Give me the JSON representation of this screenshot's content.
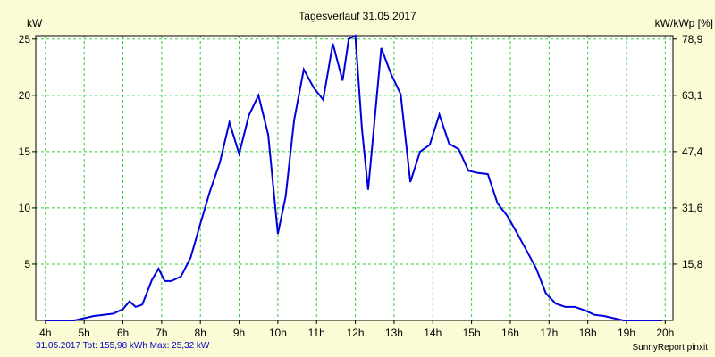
{
  "chart_data": {
    "type": "line",
    "title": "Tagesverlauf 31.05.2017",
    "ylabel_left": "kW",
    "ylabel_right": "kW/kWp [%]",
    "xlim": [
      3.75,
      20.2
    ],
    "ylim": [
      0,
      25.3
    ],
    "x_ticks": [
      4,
      5,
      6,
      7,
      8,
      9,
      10,
      11,
      12,
      13,
      14,
      15,
      16,
      17,
      18,
      19,
      20
    ],
    "x_tick_labels": [
      "4h",
      "5h",
      "6h",
      "7h",
      "8h",
      "9h",
      "10h",
      "11h",
      "12h",
      "13h",
      "14h",
      "15h",
      "16h",
      "17h",
      "18h",
      "19h",
      "20h"
    ],
    "y_ticks_left": [
      5,
      10,
      15,
      20,
      25
    ],
    "y_tick_labels_left": [
      "5",
      "10",
      "15",
      "20",
      "25"
    ],
    "y_ticks_right": [
      5,
      10,
      15,
      20,
      25
    ],
    "y_tick_labels_right": [
      "15,8",
      "31,6",
      "47,4",
      "63,1",
      "78,9"
    ],
    "grid": true,
    "color": "#0000dc",
    "series": [
      {
        "x": [
          4.0,
          4.25,
          4.5,
          4.75,
          5.0,
          5.25,
          5.5,
          5.75,
          6.0,
          6.17,
          6.33,
          6.5,
          6.75,
          6.92,
          7.08,
          7.25,
          7.5,
          7.75,
          8.0,
          8.25,
          8.5,
          8.75,
          9.0,
          9.25,
          9.5,
          9.75,
          10.0,
          10.2,
          10.42,
          10.67,
          10.92,
          11.17,
          11.42,
          11.67,
          11.83,
          12.0,
          12.17,
          12.33,
          12.67,
          12.92,
          13.17,
          13.42,
          13.67,
          13.92,
          14.17,
          14.42,
          14.67,
          14.92,
          15.17,
          15.42,
          15.67,
          15.92,
          16.17,
          16.42,
          16.67,
          16.92,
          17.17,
          17.42,
          17.67,
          17.92,
          18.17,
          18.42,
          18.67,
          18.92,
          19.17,
          19.42,
          19.67,
          19.92
        ],
        "y": [
          0.0,
          0.0,
          0.0,
          0.0,
          0.2,
          0.4,
          0.5,
          0.6,
          1.0,
          1.7,
          1.2,
          1.4,
          3.6,
          4.6,
          3.5,
          3.5,
          3.9,
          5.6,
          8.6,
          11.5,
          14.0,
          17.6,
          14.8,
          18.2,
          20.0,
          16.5,
          7.7,
          11.0,
          17.8,
          22.3,
          20.7,
          19.6,
          24.6,
          21.3,
          25.0,
          25.3,
          17.0,
          11.6,
          24.2,
          21.9,
          20.1,
          12.3,
          15.0,
          15.6,
          18.3,
          15.7,
          15.2,
          13.3,
          13.1,
          13.0,
          10.4,
          9.3,
          7.8,
          6.2,
          4.6,
          2.4,
          1.5,
          1.2,
          1.2,
          0.9,
          0.5,
          0.4,
          0.2,
          0.0,
          0.0,
          0.0,
          0.0,
          0.0
        ]
      }
    ]
  },
  "footer": {
    "summary": "31.05.2017 Tot: 155,98 kWh Max: 25,32 kW",
    "brand": "SunnyReport pinxit"
  }
}
